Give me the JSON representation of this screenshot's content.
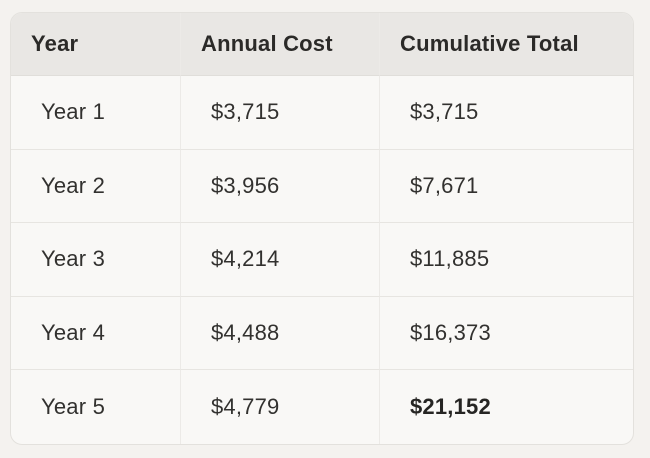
{
  "colors": {
    "page_background": "#f4f2ef",
    "header_background": "#e9e7e4",
    "body_background": "#f9f8f6",
    "border": "#e3e1dd",
    "text": "#32312f"
  },
  "table": {
    "columns": [
      {
        "label": "Year"
      },
      {
        "label": "Annual Cost"
      },
      {
        "label": "Cumulative Total"
      }
    ],
    "rows": [
      {
        "year": "Year 1",
        "annual_cost": "$3,715",
        "cumulative_total": "$3,715"
      },
      {
        "year": "Year 2",
        "annual_cost": "$3,956",
        "cumulative_total": "$7,671"
      },
      {
        "year": "Year 3",
        "annual_cost": "$4,214",
        "cumulative_total": "$11,885"
      },
      {
        "year": "Year 4",
        "annual_cost": "$4,488",
        "cumulative_total": "$16,373"
      },
      {
        "year": "Year 5",
        "annual_cost": "$4,779",
        "cumulative_total": "$21,152"
      }
    ]
  },
  "chart_data": {
    "type": "table",
    "title": "",
    "columns": [
      "Year",
      "Annual Cost",
      "Cumulative Total"
    ],
    "categories": [
      "Year 1",
      "Year 2",
      "Year 3",
      "Year 4",
      "Year 5"
    ],
    "series": [
      {
        "name": "Annual Cost",
        "values": [
          3715,
          3956,
          4214,
          4488,
          4779
        ]
      },
      {
        "name": "Cumulative Total",
        "values": [
          3715,
          7671,
          11885,
          16373,
          21152
        ]
      }
    ]
  }
}
